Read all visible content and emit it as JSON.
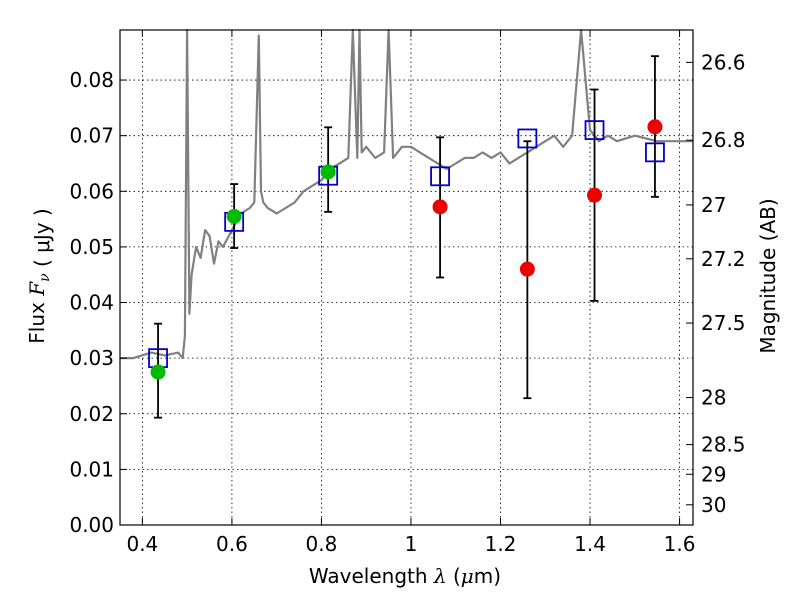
{
  "chart_data": {
    "type": "scatter",
    "title": "",
    "xlabel": "Wavelength",
    "xlabel_symbol": "λ",
    "xlabel_unit_prefix": "(",
    "xlabel_unit_mu": "μ",
    "xlabel_unit_suffix": "m)",
    "ylabel": "Flux",
    "ylabel_symbol": "F",
    "ylabel_symbol_sub": "ν",
    "ylabel_unit": "( μJy )",
    "y2label": "Magnitude (AB)",
    "xlim": [
      0.35,
      1.63
    ],
    "ylim": [
      0.0,
      0.089
    ],
    "grid": true,
    "x_ticks": [
      0.4,
      0.6,
      0.8,
      1.0,
      1.2,
      1.4,
      1.6
    ],
    "x_tick_labels": [
      "0.4",
      "0.6",
      "0.8",
      "1",
      "1.2",
      "1.4",
      "1.6"
    ],
    "y_ticks": [
      0.0,
      0.01,
      0.02,
      0.03,
      0.04,
      0.05,
      0.06,
      0.07,
      0.08
    ],
    "y_tick_labels": [
      "0.00",
      "0.01",
      "0.02",
      "0.03",
      "0.04",
      "0.05",
      "0.06",
      "0.07",
      "0.08"
    ],
    "mag_ticks": [
      26.6,
      26.8,
      27.0,
      27.2,
      27.5,
      28.0,
      28.5,
      29.0,
      30.0
    ],
    "mag_tick_labels": [
      "26.6",
      "26.8",
      "27",
      "27.2",
      "27.5",
      "28",
      "28.5",
      "29",
      "30"
    ],
    "colors": {
      "spectrum": "#808080",
      "model": "#0000cc",
      "green_points": "#00bb00",
      "red_points": "#ee0000",
      "errorbar": "#000000"
    },
    "series": [
      {
        "kind": "spectrum",
        "x": [
          0.35,
          0.38,
          0.42,
          0.45,
          0.48,
          0.49,
          0.495,
          0.5,
          0.505,
          0.51,
          0.52,
          0.53,
          0.54,
          0.55,
          0.56,
          0.57,
          0.58,
          0.6,
          0.62,
          0.64,
          0.65,
          0.66,
          0.665,
          0.67,
          0.68,
          0.7,
          0.72,
          0.74,
          0.76,
          0.78,
          0.8,
          0.82,
          0.84,
          0.86,
          0.87,
          0.88,
          0.885,
          0.89,
          0.9,
          0.92,
          0.94,
          0.95,
          0.96,
          0.98,
          1.0,
          1.02,
          1.04,
          1.06,
          1.08,
          1.1,
          1.12,
          1.14,
          1.16,
          1.18,
          1.2,
          1.22,
          1.24,
          1.26,
          1.28,
          1.3,
          1.32,
          1.34,
          1.36,
          1.38,
          1.4,
          1.42,
          1.44,
          1.46,
          1.5,
          1.55,
          1.6,
          1.63
        ],
        "y": [
          0.03,
          0.03,
          0.031,
          0.0305,
          0.031,
          0.03,
          0.034,
          0.092,
          0.038,
          0.045,
          0.05,
          0.048,
          0.053,
          0.052,
          0.047,
          0.051,
          0.05,
          0.053,
          0.056,
          0.057,
          0.058,
          0.088,
          0.06,
          0.058,
          0.057,
          0.056,
          0.057,
          0.058,
          0.06,
          0.061,
          0.062,
          0.064,
          0.065,
          0.066,
          0.09,
          0.066,
          0.09,
          0.067,
          0.068,
          0.066,
          0.067,
          0.09,
          0.066,
          0.068,
          0.068,
          0.067,
          0.066,
          0.065,
          0.064,
          0.065,
          0.066,
          0.066,
          0.067,
          0.066,
          0.067,
          0.065,
          0.066,
          0.067,
          0.068,
          0.069,
          0.07,
          0.068,
          0.07,
          0.09,
          0.071,
          0.069,
          0.07,
          0.069,
          0.07,
          0.069,
          0.069,
          0.069
        ]
      },
      {
        "kind": "model",
        "marker": "open-square",
        "x": [
          0.435,
          0.605,
          0.815,
          1.065,
          1.26,
          1.41,
          1.545
        ],
        "y": [
          0.03,
          0.0545,
          0.0628,
          0.0627,
          0.0695,
          0.071,
          0.067
        ]
      },
      {
        "kind": "observed-green",
        "marker": "circle",
        "x": [
          0.435,
          0.605,
          0.815
        ],
        "y": [
          0.0275,
          0.0555,
          0.0635
        ],
        "err_low": [
          0.0193,
          0.0498,
          0.0563
        ],
        "err_high": [
          0.0362,
          0.0613,
          0.0715
        ]
      },
      {
        "kind": "observed-red",
        "marker": "circle",
        "x": [
          1.065,
          1.26,
          1.41,
          1.545
        ],
        "y": [
          0.0572,
          0.046,
          0.0593,
          0.0716
        ],
        "err_low": [
          0.0445,
          0.0228,
          0.0403,
          0.059
        ],
        "err_high": [
          0.0697,
          0.069,
          0.0783,
          0.0843
        ]
      }
    ]
  }
}
